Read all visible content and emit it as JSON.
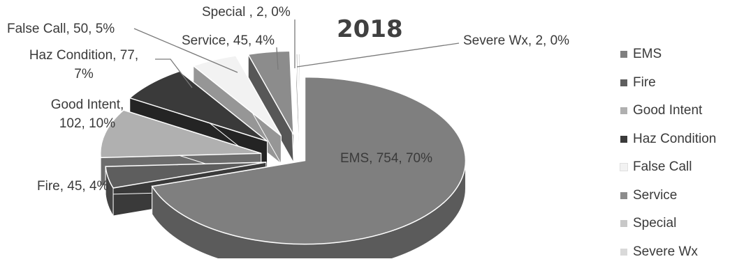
{
  "chart_data": {
    "type": "pie",
    "title": "2018",
    "legend_position": "right",
    "slices": [
      {
        "name": "EMS",
        "value": 754,
        "percent": "70%",
        "label": [
          "EMS, 754, 70%"
        ],
        "color": "#7f7f7f"
      },
      {
        "name": "Fire",
        "value": 45,
        "percent": "4%",
        "label": [
          "Fire, 45, 4%"
        ],
        "color": "#5e5e5e"
      },
      {
        "name": "Good Intent",
        "value": 102,
        "percent": "10%",
        "label": [
          "Good Intent,",
          "102, 10%"
        ],
        "color": "#b0b0b0"
      },
      {
        "name": "Haz Condition",
        "value": 77,
        "percent": "7%",
        "label": [
          "Haz Condition, 77,",
          "7%"
        ],
        "color": "#3a3a3a"
      },
      {
        "name": "False Call",
        "value": 50,
        "percent": "5%",
        "label": [
          "False Call, 50, 5%"
        ],
        "color": "#f2f2f2"
      },
      {
        "name": "Service",
        "value": 45,
        "percent": "4%",
        "label": [
          "Service, 45, 4%"
        ],
        "color": "#8c8c8c"
      },
      {
        "name": "Special",
        "value": 2,
        "percent": "0%",
        "label": [
          "Special , 2, 0%"
        ],
        "color": "#c8c8c8"
      },
      {
        "name": "Severe Wx",
        "value": 2,
        "percent": "0%",
        "label": [
          "Severe Wx, 2, 0%"
        ],
        "color": "#d9d9d9"
      }
    ]
  }
}
